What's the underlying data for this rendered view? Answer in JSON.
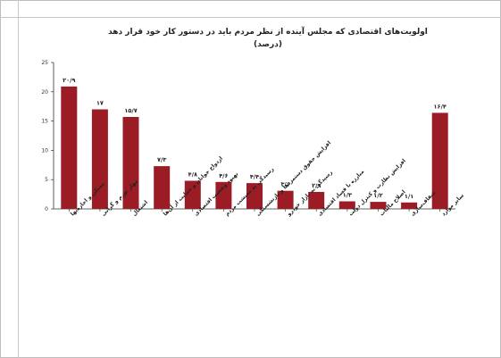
{
  "chart_data": {
    "type": "bar",
    "title": "اولویت‌های اقتصادی که مجلس آینده از نظر مردم باید در دستور کار خود قرار دهد",
    "subtitle": "(درصد)",
    "xlabel": "",
    "ylabel": "",
    "ylim": [
      0,
      25
    ],
    "yticks": [
      "0",
      "5",
      "10",
      "15",
      "20",
      "25"
    ],
    "grid": false,
    "legend": false,
    "bar_color": "#9b1c24",
    "categories": [
      "مسکن و اجاره‌بها",
      "مهار تورم و گرانی",
      "اشتغال",
      "ازدواج جوانان و حمایت از آن‌ها",
      "بهبود وضعیت اقتصادی",
      "رسیدگی به معیشت مردم",
      "افزایش حقوق دستمزدها و بازنشستگی",
      "رسیدگی به بازار خودرو",
      "مبارزه با فساد اقتصادی",
      "افزایش نظارت و کنترل دولت",
      "اصلاح مالیات",
      "شفاف‌سازی",
      "سایر موارد"
    ],
    "values": [
      20.9,
      17,
      15.7,
      7.3,
      4.8,
      4.6,
      4.4,
      3.1,
      2.9,
      1.3,
      1.2,
      1.1,
      16.4
    ],
    "data_labels": [
      "۲۰/۹",
      "۱۷",
      "۱۵/۷",
      "۷/۳",
      "۴/۸",
      "۴/۶",
      "۴/۴",
      "۳/۱",
      "۲/۹",
      "۱/۳",
      "۱/۲",
      "۱/۱",
      "۱۶/۴"
    ]
  }
}
